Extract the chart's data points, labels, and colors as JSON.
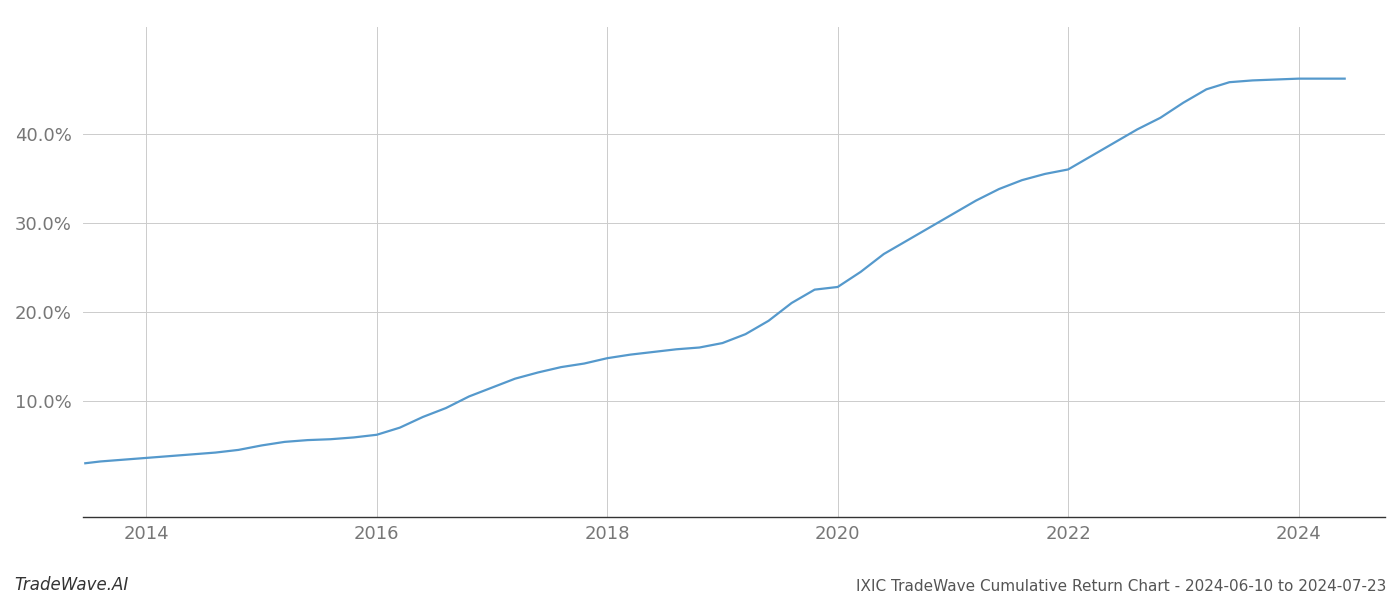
{
  "title": "IXIC TradeWave Cumulative Return Chart - 2024-06-10 to 2024-07-23",
  "watermark": "TradeWave.AI",
  "line_color": "#5599cc",
  "line_width": 1.6,
  "background_color": "#ffffff",
  "grid_color": "#cccccc",
  "x_years": [
    2013.47,
    2013.6,
    2013.8,
    2014.0,
    2014.2,
    2014.4,
    2014.6,
    2014.8,
    2015.0,
    2015.2,
    2015.4,
    2015.6,
    2015.8,
    2016.0,
    2016.2,
    2016.4,
    2016.6,
    2016.8,
    2017.0,
    2017.2,
    2017.4,
    2017.6,
    2017.8,
    2018.0,
    2018.2,
    2018.4,
    2018.6,
    2018.8,
    2019.0,
    2019.2,
    2019.4,
    2019.6,
    2019.8,
    2020.0,
    2020.2,
    2020.4,
    2020.6,
    2020.8,
    2021.0,
    2021.2,
    2021.4,
    2021.6,
    2021.8,
    2022.0,
    2022.2,
    2022.4,
    2022.6,
    2022.8,
    2023.0,
    2023.2,
    2023.4,
    2023.6,
    2023.8,
    2024.0,
    2024.2,
    2024.4
  ],
  "y_values": [
    3.0,
    3.2,
    3.4,
    3.6,
    3.8,
    4.0,
    4.2,
    4.5,
    5.0,
    5.4,
    5.6,
    5.7,
    5.9,
    6.2,
    7.0,
    8.2,
    9.2,
    10.5,
    11.5,
    12.5,
    13.2,
    13.8,
    14.2,
    14.8,
    15.2,
    15.5,
    15.8,
    16.0,
    16.5,
    17.5,
    19.0,
    21.0,
    22.5,
    22.8,
    24.5,
    26.5,
    28.0,
    29.5,
    31.0,
    32.5,
    33.8,
    34.8,
    35.5,
    36.0,
    37.5,
    39.0,
    40.5,
    41.8,
    43.5,
    45.0,
    45.8,
    46.0,
    46.1,
    46.2,
    46.2,
    46.2
  ],
  "xtick_labels": [
    "2014",
    "2016",
    "2018",
    "2020",
    "2022",
    "2024"
  ],
  "xtick_positions": [
    2014,
    2016,
    2018,
    2020,
    2022,
    2024
  ],
  "ytick_labels": [
    "10.0%",
    "20.0%",
    "30.0%",
    "40.0%"
  ],
  "ytick_values": [
    10,
    20,
    30,
    40
  ],
  "xlim": [
    2013.45,
    2024.75
  ],
  "ylim": [
    -3,
    52
  ],
  "axis_color": "#333333",
  "tick_color": "#777777",
  "tick_fontsize": 13,
  "title_fontsize": 11,
  "watermark_fontsize": 12
}
